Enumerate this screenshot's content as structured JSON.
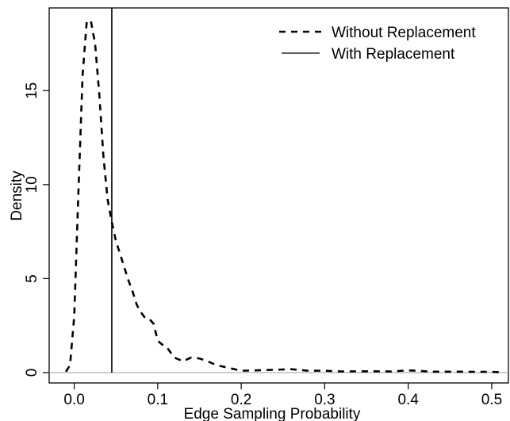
{
  "chart_data": {
    "type": "line",
    "title": "",
    "xlabel": "Edge Sampling Probability",
    "ylabel": "Density",
    "xlim": [
      -0.03,
      0.52
    ],
    "ylim": [
      -0.55,
      19.4
    ],
    "x_ticks": [
      0.0,
      0.1,
      0.2,
      0.3,
      0.4,
      0.5
    ],
    "x_tick_labels": [
      "0.0",
      "0.1",
      "0.2",
      "0.3",
      "0.4",
      "0.5"
    ],
    "y_ticks": [
      0,
      5,
      10,
      15
    ],
    "y_tick_labels": [
      "0",
      "5",
      "10",
      "15"
    ],
    "grid": false,
    "legend_position": "top-right",
    "series": [
      {
        "name": "Without Replacement",
        "style": "dashed",
        "x": [
          -0.01,
          -0.005,
          0.0,
          0.005,
          0.01,
          0.015,
          0.02,
          0.025,
          0.03,
          0.035,
          0.04,
          0.045,
          0.05,
          0.055,
          0.06,
          0.065,
          0.07,
          0.075,
          0.08,
          0.085,
          0.09,
          0.095,
          0.1,
          0.105,
          0.11,
          0.115,
          0.12,
          0.13,
          0.14,
          0.15,
          0.16,
          0.17,
          0.18,
          0.19,
          0.2,
          0.22,
          0.24,
          0.26,
          0.28,
          0.3,
          0.32,
          0.35,
          0.38,
          0.4,
          0.43,
          0.46,
          0.48,
          0.5,
          0.51
        ],
        "y": [
          0.05,
          0.4,
          3.0,
          9.5,
          15.8,
          18.7,
          18.7,
          17.5,
          14.8,
          11.5,
          9.2,
          8.0,
          7.0,
          6.3,
          5.6,
          4.9,
          4.3,
          3.6,
          3.2,
          2.9,
          2.85,
          2.6,
          1.7,
          1.5,
          1.4,
          1.1,
          0.8,
          0.6,
          0.8,
          0.75,
          0.6,
          0.4,
          0.3,
          0.2,
          0.1,
          0.12,
          0.15,
          0.18,
          0.1,
          0.1,
          0.06,
          0.07,
          0.06,
          0.12,
          0.05,
          0.05,
          0.04,
          0.04,
          0.02
        ]
      },
      {
        "name": "With Replacement",
        "style": "solid",
        "x_value": 0.045,
        "y_top": 19.4
      }
    ],
    "baseline_y": 0
  },
  "colors": {
    "line": "#000000",
    "baseline": "#aaaaaa",
    "background": "#ffffff"
  }
}
